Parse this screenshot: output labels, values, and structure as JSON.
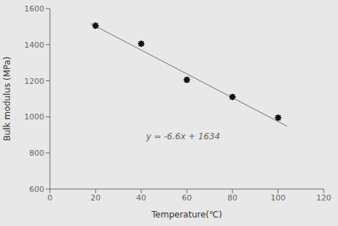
{
  "chart_data": {
    "type": "scatter",
    "xlabel": "Temperature(℃)",
    "ylabel": "Bulk modulus (MPa)",
    "annotations": [
      "y = -6.6x + 1634"
    ],
    "xlim": [
      0,
      120
    ],
    "ylim": [
      600,
      1600
    ],
    "xticks": [
      0,
      20,
      40,
      60,
      80,
      100,
      120
    ],
    "yticks": [
      600,
      800,
      1000,
      1200,
      1400,
      1600
    ],
    "grid": false,
    "series": [
      {
        "type": "line",
        "color": "#888888",
        "x": [
          18,
          104
        ],
        "values": [
          1515.2,
          947.6
        ]
      },
      {
        "type": "scatter",
        "color": "#111111",
        "marker": "diamond",
        "x": [
          20,
          40,
          60,
          80,
          100
        ],
        "values": [
          1505,
          1405,
          1205,
          1110,
          995
        ],
        "error": [
          12,
          12,
          12,
          12,
          12
        ]
      }
    ]
  }
}
